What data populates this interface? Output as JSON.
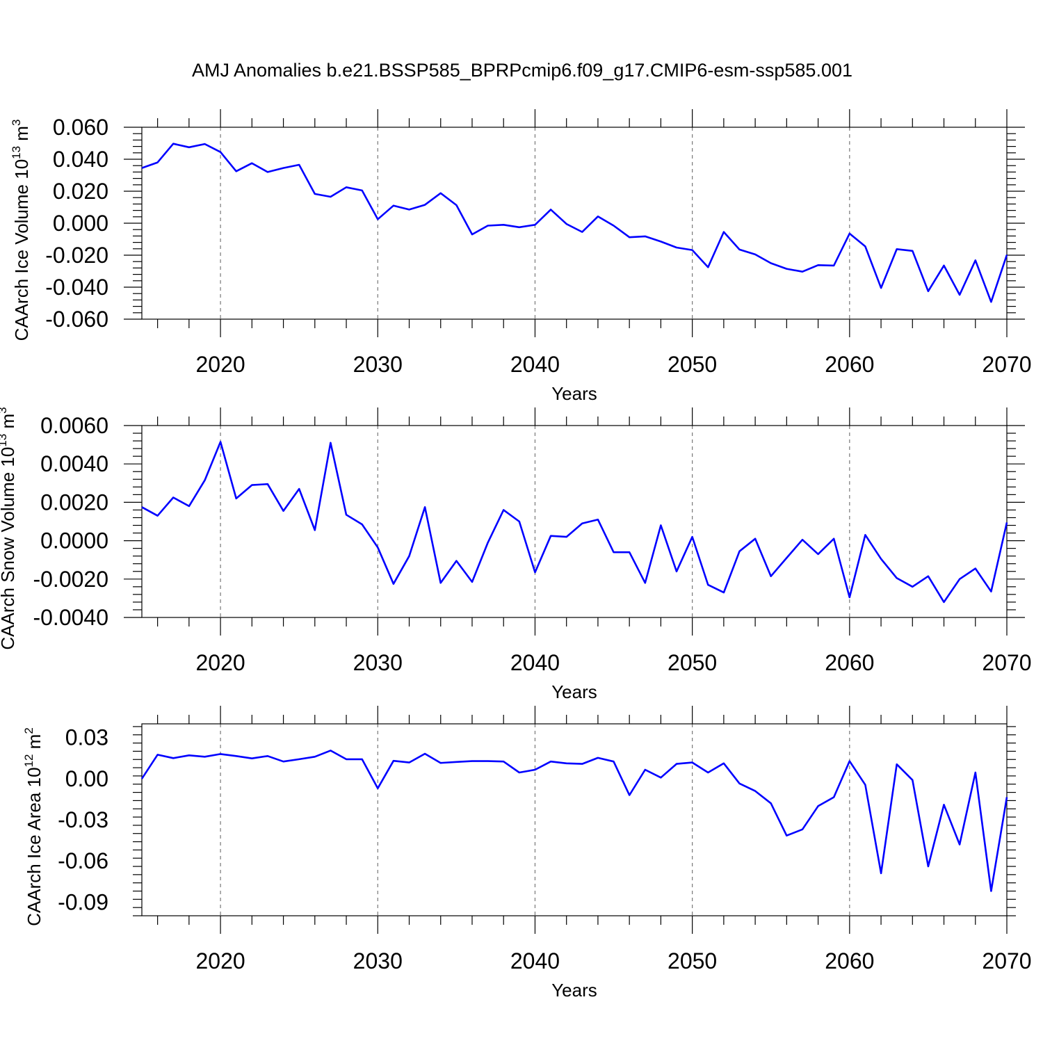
{
  "title": "AMJ Anomalies b.e21.BSSP585_BPRPcmip6.f09_g17.CMIP6-esm-ssp585.001",
  "chart_data": [
    {
      "type": "line",
      "ylabel": {
        "main": "CAArch Ice Volume 10",
        "sup1": "13",
        "mid": " m",
        "sup2": "3"
      },
      "xlabel": "Years",
      "xlim": [
        2015,
        2070
      ],
      "ylim": [
        -0.06,
        0.06
      ],
      "x_ticks": [
        2020,
        2030,
        2040,
        2050,
        2060,
        2070
      ],
      "x_tick_labels": [
        "2020",
        "2030",
        "2040",
        "2050",
        "2060",
        "2070"
      ],
      "y_ticks": [
        -0.06,
        -0.04,
        -0.02,
        0.0,
        0.02,
        0.04,
        0.06
      ],
      "y_tick_labels": [
        "-0.060",
        "-0.040",
        "-0.020",
        "0.000",
        "0.020",
        "0.040",
        "0.060"
      ],
      "grid": "vertical dashed at major x ticks",
      "color": "#0000ff",
      "x_start": 2015,
      "values": [
        0.0345,
        0.038,
        0.0497,
        0.0475,
        0.0495,
        0.0445,
        0.0325,
        0.0375,
        0.032,
        0.0345,
        0.0365,
        0.0183,
        0.0165,
        0.0225,
        0.0205,
        0.0025,
        0.011,
        0.0085,
        0.0115,
        0.0188,
        0.0113,
        -0.007,
        -0.0015,
        -0.001,
        -0.0025,
        -0.001,
        0.0085,
        -0.0005,
        -0.0055,
        0.0042,
        -0.0015,
        -0.0088,
        -0.0082,
        -0.0115,
        -0.0152,
        -0.0168,
        -0.0275,
        -0.0055,
        -0.0165,
        -0.0195,
        -0.025,
        -0.0285,
        -0.0303,
        -0.0262,
        -0.0265,
        -0.0065,
        -0.0145,
        -0.0405,
        -0.0162,
        -0.0173,
        -0.0425,
        -0.0265,
        -0.0448,
        -0.0232,
        -0.0492,
        -0.0198
      ]
    },
    {
      "type": "line",
      "ylabel": {
        "main": "CAArch Snow Volume 10",
        "sup1": "13",
        "mid": " m",
        "sup2": "3"
      },
      "xlabel": "Years",
      "xlim": [
        2015,
        2070
      ],
      "ylim": [
        -0.004,
        0.006
      ],
      "x_ticks": [
        2020,
        2030,
        2040,
        2050,
        2060,
        2070
      ],
      "x_tick_labels": [
        "2020",
        "2030",
        "2040",
        "2050",
        "2060",
        "2070"
      ],
      "y_ticks": [
        -0.004,
        -0.002,
        0.0,
        0.002,
        0.004,
        0.006
      ],
      "y_tick_labels": [
        "-0.0040",
        "-0.0020",
        "0.0000",
        "0.0020",
        "0.0040",
        "0.0060"
      ],
      "grid": "vertical dashed at major x ticks",
      "color": "#0000ff",
      "x_start": 2015,
      "values": [
        0.00175,
        0.0013,
        0.00225,
        0.0018,
        0.00315,
        0.00515,
        0.0022,
        0.0029,
        0.00295,
        0.00155,
        0.0027,
        0.00055,
        0.0051,
        0.00135,
        0.00085,
        -0.00035,
        -0.00225,
        -0.0008,
        0.00175,
        -0.0022,
        -0.00105,
        -0.00215,
        -0.0001,
        0.0016,
        0.001,
        -0.00165,
        0.00025,
        0.0002,
        0.0009,
        0.0011,
        -0.0006,
        -0.0006,
        -0.0022,
        0.0008,
        -0.0016,
        0.0002,
        -0.0023,
        -0.0027,
        -0.00055,
        0.0001,
        -0.00185,
        -0.0009,
        5e-05,
        -0.0007,
        0.0001,
        -0.00295,
        0.0003,
        -0.00095,
        -0.00195,
        -0.0024,
        -0.00185,
        -0.0032,
        -0.002,
        -0.00145,
        -0.00265,
        0.00095
      ]
    },
    {
      "type": "line",
      "ylabel": {
        "main": "CAArch Ice Area 10",
        "sup1": "12",
        "mid": " m",
        "sup2": "2"
      },
      "xlabel": "Years",
      "xlim": [
        2015,
        2070
      ],
      "ylim": [
        -0.1,
        0.04
      ],
      "x_ticks": [
        2020,
        2030,
        2040,
        2050,
        2060,
        2070
      ],
      "x_tick_labels": [
        "2020",
        "2030",
        "2040",
        "2050",
        "2060",
        "2070"
      ],
      "y_ticks": [
        -0.09,
        -0.06,
        -0.03,
        0.0,
        0.03
      ],
      "y_tick_labels": [
        "-0.09",
        "-0.06",
        "-0.03",
        "0.00",
        "0.03"
      ],
      "grid": "vertical dashed at major x ticks",
      "color": "#0000ff",
      "x_start": 2015,
      "values": [
        0.0,
        0.0175,
        0.015,
        0.017,
        0.016,
        0.018,
        0.0165,
        0.0148,
        0.0165,
        0.0125,
        0.0142,
        0.016,
        0.0205,
        0.0142,
        0.0142,
        -0.007,
        0.013,
        0.0118,
        0.0182,
        0.0115,
        0.0122,
        0.0128,
        0.0128,
        0.0125,
        0.0045,
        0.0065,
        0.0125,
        0.0112,
        0.0108,
        0.0152,
        0.0125,
        -0.012,
        0.0065,
        0.0008,
        0.0108,
        0.0118,
        0.0045,
        0.0112,
        -0.0035,
        -0.009,
        -0.018,
        -0.0415,
        -0.037,
        -0.02,
        -0.0135,
        0.0128,
        -0.0045,
        -0.069,
        0.0105,
        -0.001,
        -0.064,
        -0.019,
        -0.048,
        0.0045,
        -0.082,
        -0.0135
      ]
    }
  ]
}
